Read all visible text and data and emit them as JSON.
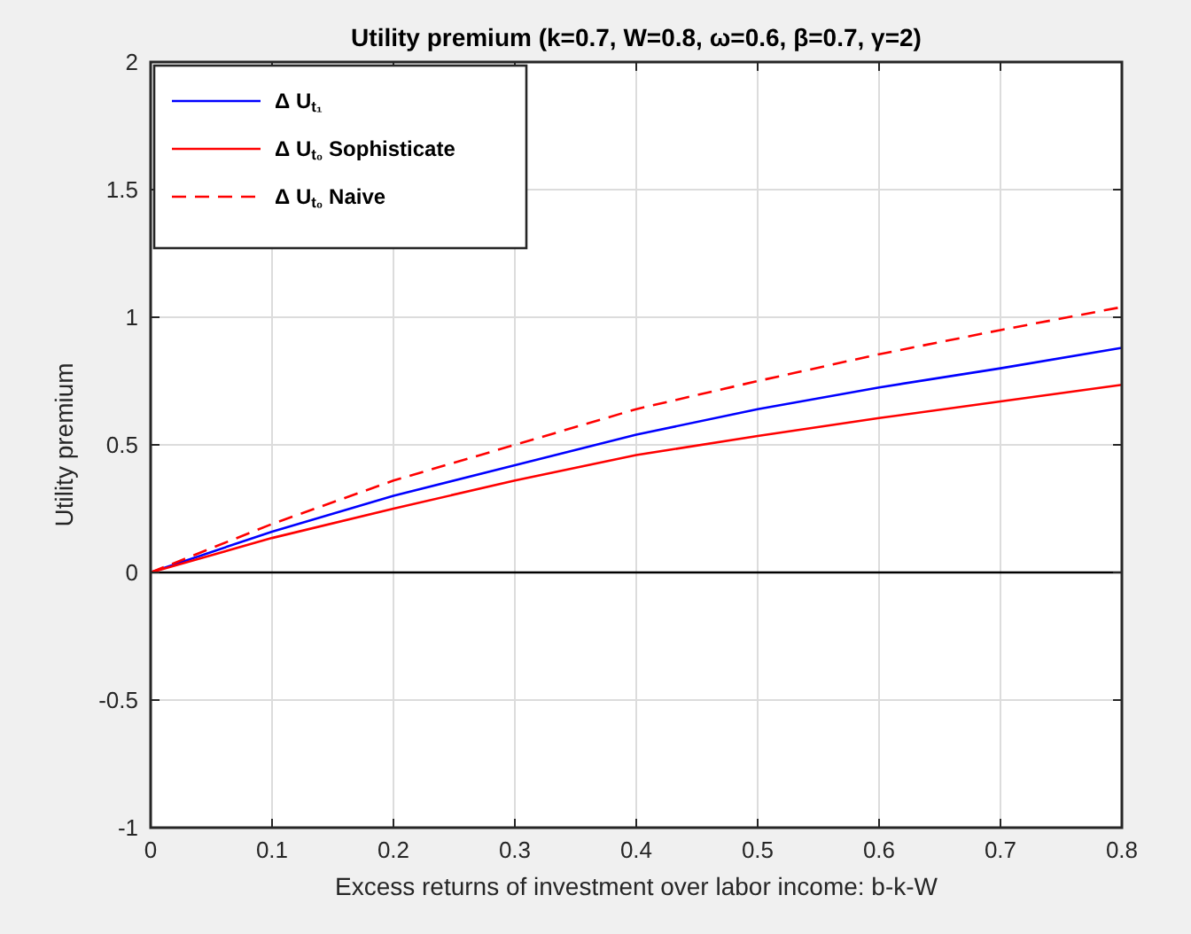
{
  "chart_data": {
    "type": "line",
    "title": "Utility  premium (k=0.7, W=0.8, ω=0.6, β=0.7, γ=2)",
    "xlabel": "Excess returns of investment over labor income: b-k-W",
    "ylabel": "Utility premium",
    "x": [
      0,
      0.1,
      0.2,
      0.3,
      0.4,
      0.5,
      0.6,
      0.7,
      0.8
    ],
    "series": [
      {
        "name": "Δ U$_{t₁}$",
        "color": "#0000ff",
        "line_style": "solid",
        "values": [
          0,
          0.16,
          0.3,
          0.42,
          0.54,
          0.64,
          0.725,
          0.8,
          0.88
        ]
      },
      {
        "name": "Δ U$_{t₀}$ Sophisticate",
        "color": "#ff0000",
        "line_style": "solid",
        "values": [
          0,
          0.135,
          0.25,
          0.36,
          0.46,
          0.535,
          0.605,
          0.67,
          0.735
        ]
      },
      {
        "name": "Δ U$_{t₀}$ Naive",
        "color": "#ff0000",
        "line_style": "dashed",
        "values": [
          0,
          0.19,
          0.36,
          0.5,
          0.64,
          0.75,
          0.855,
          0.95,
          1.04
        ]
      }
    ],
    "xlim": [
      0,
      0.8
    ],
    "xticks": [
      0,
      0.1,
      0.2,
      0.3,
      0.4,
      0.5,
      0.6,
      0.7,
      0.8
    ],
    "ylim": [
      -1,
      2
    ],
    "yticks": [
      -1,
      -0.5,
      0,
      0.5,
      1,
      1.5,
      2
    ],
    "ref_lines": [
      {
        "axis": "y",
        "value": 0,
        "color": "#000000"
      }
    ],
    "grid": true,
    "legend": "top left"
  }
}
